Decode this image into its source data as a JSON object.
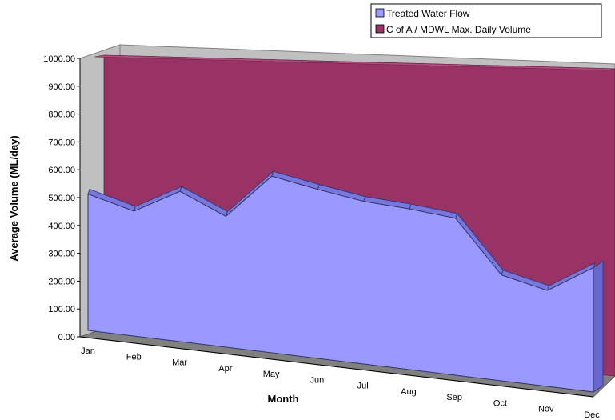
{
  "chart_data": {
    "type": "area",
    "style": "3d",
    "categories": [
      "Jan",
      "Feb",
      "Mar",
      "Apr",
      "May",
      "Jun",
      "Jul",
      "Aug",
      "Sep",
      "Oct",
      "Nov",
      "Dec"
    ],
    "series": [
      {
        "name": "C of A / MDWL Max. Daily Volume",
        "color": "#993366",
        "values": [
          1000,
          1000,
          1000,
          1000,
          1000,
          1000,
          1000,
          1000,
          1000,
          1000,
          1000,
          1000
        ]
      },
      {
        "name": "Treated Water Flow",
        "color": "#9999ff",
        "values": [
          490,
          440,
          520,
          445,
          590,
          555,
          525,
          510,
          490,
          325,
          290,
          370
        ]
      }
    ],
    "xlabel": "Month",
    "ylabel": "Average Volume (ML/day)",
    "yticks": [
      "0.00",
      "100.00",
      "200.00",
      "300.00",
      "400.00",
      "500.00",
      "600.00",
      "700.00",
      "800.00",
      "900.00",
      "1000.00"
    ],
    "ylim": [
      0,
      1000
    ],
    "legend_position": "top-right",
    "gridlines": false,
    "wall_color": "#c0c0c0"
  }
}
